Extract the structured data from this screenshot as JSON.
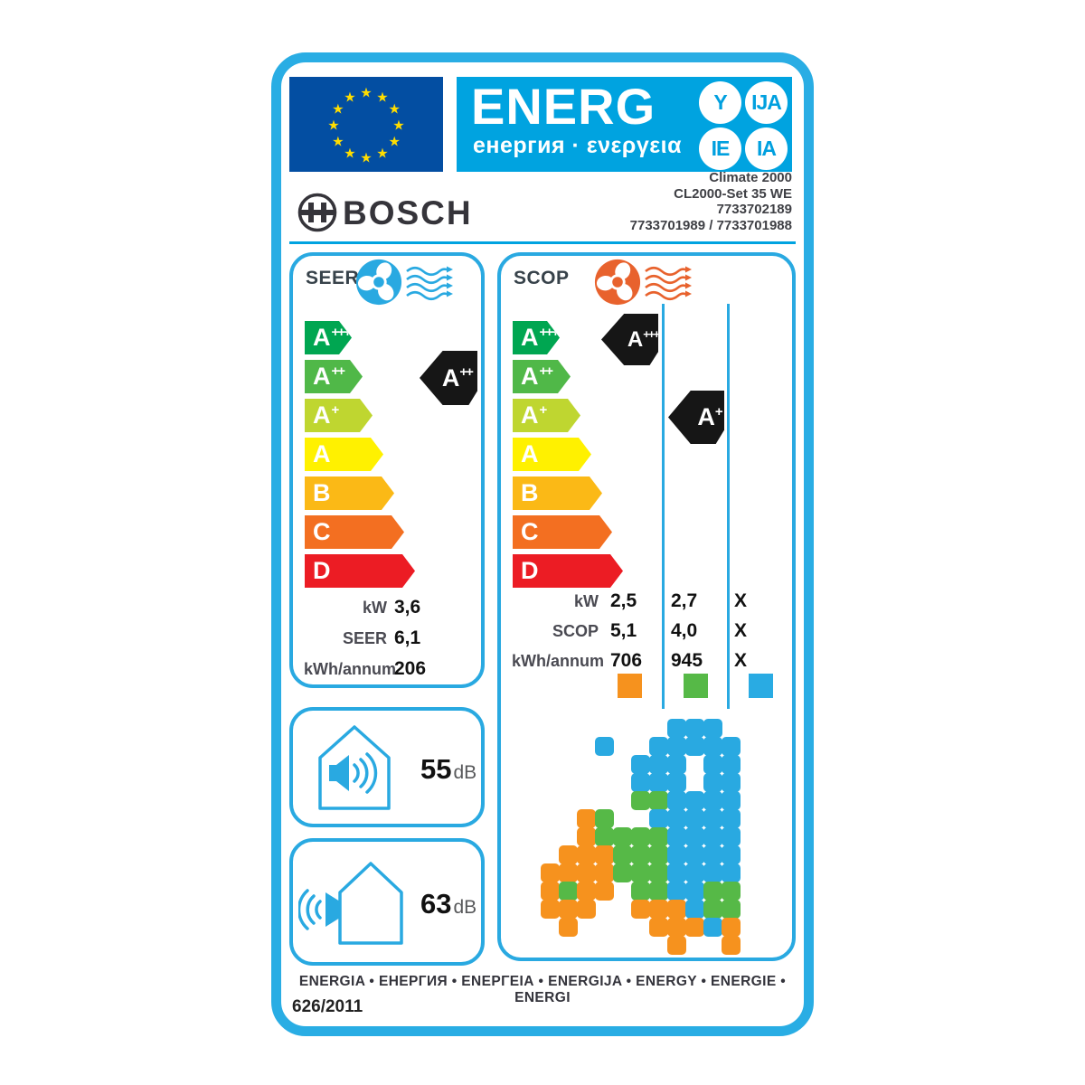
{
  "header": {
    "energ_title": "ENERG",
    "energ_subtitle": "енергия · ενεργεια",
    "badges": [
      "Y",
      "IJA",
      "IE",
      "IA"
    ],
    "brand": "BOSCH",
    "product_lines": [
      "Climate 2000",
      "CL2000-Set 35 WE",
      "7733702189",
      "7733701989 / 7733701988"
    ]
  },
  "scale": [
    {
      "letter": "A",
      "plus": "+++",
      "color": "#00A651"
    },
    {
      "letter": "A",
      "plus": "++",
      "color": "#50B848"
    },
    {
      "letter": "A",
      "plus": "+",
      "color": "#BFD630"
    },
    {
      "letter": "A",
      "plus": "",
      "color": "#FFF100"
    },
    {
      "letter": "B",
      "plus": "",
      "color": "#FBB916"
    },
    {
      "letter": "C",
      "plus": "",
      "color": "#F36F21"
    },
    {
      "letter": "D",
      "plus": "",
      "color": "#EC1C24"
    }
  ],
  "seer": {
    "title": "SEER",
    "pointer": {
      "letter": "A",
      "plus": "++"
    },
    "rows": [
      {
        "label": "kW",
        "value": "3,6"
      },
      {
        "label": "SEER",
        "value": "6,1"
      },
      {
        "label": "kWh/annum",
        "value": "206"
      }
    ]
  },
  "scop": {
    "title": "SCOP",
    "pointers": [
      {
        "letter": "A",
        "plus": "+++"
      },
      {
        "letter": "A",
        "plus": "+"
      }
    ],
    "rows": [
      {
        "label": "kW",
        "values": [
          "2,5",
          "2,7",
          "X"
        ]
      },
      {
        "label": "SCOP",
        "values": [
          "5,1",
          "4,0",
          "X"
        ]
      },
      {
        "label": "kWh/annum",
        "values": [
          "706",
          "945",
          "X"
        ]
      }
    ],
    "zone_colors": [
      "#F6921E",
      "#56B947",
      "#29ABE3"
    ]
  },
  "noise": [
    {
      "value": "55",
      "unit": "dB"
    },
    {
      "value": "63",
      "unit": "dB"
    }
  ],
  "map": {
    "palette": {
      "b": "#29A9E1",
      "g": "#56B947",
      "o": "#F6921E"
    },
    "rows": [
      ".........bbb....",
      ".....b..bbbbb...",
      ".......bbb.bb...",
      ".......bbb.bb...",
      ".......ggbbbb...",
      "....og..bbbbb...",
      "....oggggbbbb...",
      "...ooogggbbbb...",
      "..oooogggbbbb...",
      "..ogoo.ggbbgg...",
      "..ooo..ooobgg...",
      "...o....ooobo...",
      ".........o..o..."
    ]
  },
  "footer": {
    "energia_line": "ENERGIA • ЕНЕРГИЯ • ΕΝΕΡΓΕΙΑ • ENERGIJA • ENERGY • ENERGIE • ENERGI",
    "regulation": "626/2011"
  }
}
